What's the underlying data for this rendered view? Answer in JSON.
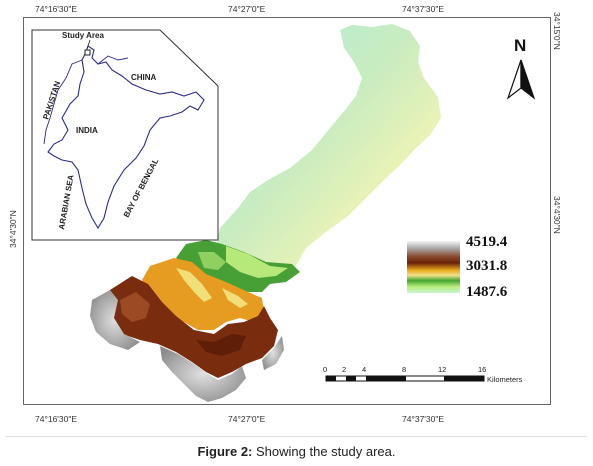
{
  "coordinates": {
    "top": [
      "74°16'30\"E",
      "74°27'0\"E",
      "74°37'30\"E"
    ],
    "bottom": [
      "74°16'30\"E",
      "74°27'0\"E",
      "74°37'30\"E"
    ],
    "left": "34°4'30\"N",
    "right_top": "34°15'0\"N",
    "right_mid": "34°4'30\"N"
  },
  "north_arrow": {
    "label": "N"
  },
  "inset": {
    "study_area": "Study Area",
    "china": "CHINA",
    "pakistan": "PAKISTAN",
    "india": "INDIA",
    "arabian_sea": "ARABIAN SEA",
    "bay_of_bengal": "BAY OF BENGAL"
  },
  "legend": {
    "max": "4519.4",
    "mid": "3031.8",
    "min": "1487.6"
  },
  "scale_bar": {
    "ticks": [
      "0",
      "2",
      "4",
      "8",
      "12",
      "16"
    ],
    "unit": "Kilometers"
  },
  "caption": {
    "label": "Figure 2:",
    "text": "Showing the study area."
  },
  "colors": {
    "high": "#a9a9a9",
    "upper": "#7a2f10",
    "mid": "#e6a020",
    "lower": "#3f9a2e",
    "low": "#a5e8cf"
  }
}
